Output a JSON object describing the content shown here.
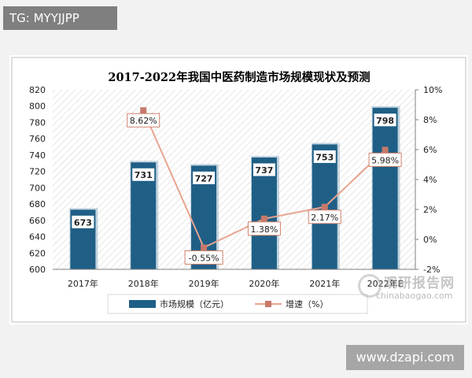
{
  "badge_text": "TG: MYYJJPP",
  "watermark_cn": "观研报告网",
  "watermark_en": "chinabaogao.com",
  "site_label": "www.dzapi.com",
  "colors": {
    "bar": "#1f5f86",
    "bar_shadow": "#9bb9cc",
    "line": "#e8a48f",
    "marker": "#c6796a",
    "title": "#1f3f6b",
    "label_border_bar": "#1f5f86",
    "label_border_line": "#d0806b"
  },
  "chart_data": {
    "type": "bar",
    "title": "2017-2022年我国中医药制造市场规模现状及预测",
    "categories": [
      "2017年",
      "2018年",
      "2019年",
      "2020年",
      "2021年",
      "2022年E"
    ],
    "series": [
      {
        "name": "市场规模（亿元）",
        "type": "bar",
        "axis": "left",
        "values": [
          673,
          731,
          727,
          737,
          753,
          798
        ],
        "data_labels": [
          "673",
          "731",
          "727",
          "737",
          "753",
          "798"
        ]
      },
      {
        "name": "增速（%）",
        "type": "line",
        "axis": "right",
        "values": [
          null,
          8.62,
          -0.55,
          1.38,
          2.17,
          5.98
        ],
        "data_labels": [
          "",
          "8.62%",
          "-0.55%",
          "1.38%",
          "2.17%",
          "5.98%"
        ]
      }
    ],
    "y_left": {
      "min": 600,
      "max": 820,
      "step": 20,
      "ticks": [
        "600",
        "620",
        "640",
        "660",
        "680",
        "700",
        "720",
        "740",
        "760",
        "780",
        "800",
        "820"
      ]
    },
    "y_right": {
      "min": -2,
      "max": 10,
      "step": 2,
      "ticks": [
        "-2%",
        "0%",
        "2%",
        "4%",
        "6%",
        "8%",
        "10%"
      ]
    },
    "legend": {
      "position": "bottom"
    },
    "grid": false
  }
}
